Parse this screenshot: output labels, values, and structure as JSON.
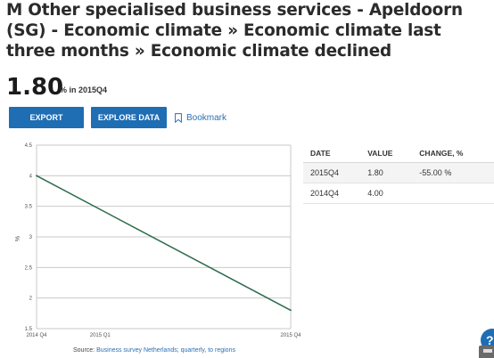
{
  "page": {
    "title": "M Other specialised business services - Apeldoorn (SG) - Economic climate » Economic climate last three months » Economic climate declined",
    "headline_value": "1.80",
    "headline_unit": "% in 2015Q4"
  },
  "toolbar": {
    "export_label": "EXPORT",
    "explore_label": "EXPLORE DATA",
    "bookmark_label": "Bookmark",
    "bookmark_icon": "bookmark-icon"
  },
  "chart_data": {
    "type": "line",
    "x": [
      "2014 Q4",
      "2015 Q1",
      "2015 Q4"
    ],
    "x_ticks": [
      "2014 Q4",
      "2015 Q1",
      "2015 Q4"
    ],
    "series": [
      {
        "x": [
          "2014 Q4",
          "2015 Q4"
        ],
        "values": [
          4.0,
          1.8
        ],
        "color": "#2e6b4c"
      }
    ],
    "y_ticks": [
      "1.5",
      "2",
      "2.5",
      "3",
      "3.5",
      "4",
      "4.5"
    ],
    "ylabel": "%",
    "ylim": [
      1.5,
      4.5
    ],
    "grid": true,
    "legend": "none"
  },
  "source": {
    "label": "Source:",
    "link_text": "Business survey Netherlands; quarterly, to regions"
  },
  "table": {
    "headers": [
      "DATE",
      "VALUE",
      "CHANGE, %"
    ],
    "rows": [
      [
        "2015Q4",
        "1.80",
        "-55.00 %"
      ],
      [
        "2014Q4",
        "4.00",
        ""
      ]
    ]
  },
  "widgets": {
    "help_label": "?"
  },
  "colors": {
    "accent": "#1f6db3",
    "line": "#2e6b4c",
    "link": "#2a6fb4"
  }
}
